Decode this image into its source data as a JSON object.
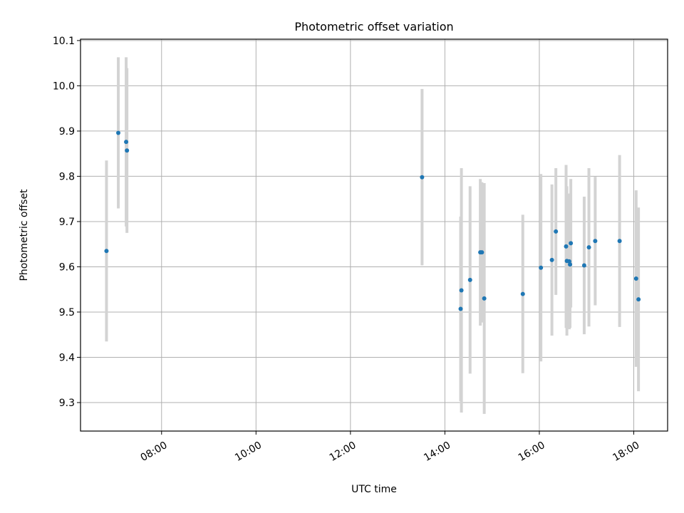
{
  "chart_data": {
    "type": "scatter",
    "title": "Photometric offset variation",
    "xlabel": "UTC time",
    "ylabel": "Photometric offset",
    "x_unit": "hour",
    "xlim": [
      "06:17",
      "18:43"
    ],
    "ylim": [
      9.237,
      10.103
    ],
    "xticks": [
      "08:00",
      "10:00",
      "12:00",
      "14:00",
      "16:00",
      "18:00"
    ],
    "yticks": [
      "9.3",
      "9.4",
      "9.5",
      "9.6",
      "9.7",
      "9.8",
      "9.9",
      "10.0",
      "10.1"
    ],
    "grid": true,
    "colors": {
      "points": "#1f77b4",
      "errorbars": "#d3d3d3",
      "grid": "#b0b0b0"
    },
    "series": [
      {
        "points": [
          {
            "x": "06:50",
            "y": 9.635,
            "err": 0.2
          },
          {
            "x": "07:05",
            "y": 9.896,
            "err": 0.167
          },
          {
            "x": "07:15",
            "y": 9.876,
            "err": 0.187
          },
          {
            "x": "07:16",
            "y": 9.857,
            "err": 0.182
          },
          {
            "x": "13:31",
            "y": 9.798,
            "err": 0.195
          },
          {
            "x": "14:20",
            "y": 9.507,
            "err": 0.204
          },
          {
            "x": "14:21",
            "y": 9.548,
            "err": 0.27
          },
          {
            "x": "14:32",
            "y": 9.571,
            "err": 0.207
          },
          {
            "x": "14:45",
            "y": 9.632,
            "err": 0.162
          },
          {
            "x": "14:47",
            "y": 9.632,
            "err": 0.155
          },
          {
            "x": "14:50",
            "y": 9.53,
            "err": 0.255
          },
          {
            "x": "15:39",
            "y": 9.54,
            "err": 0.175
          },
          {
            "x": "16:02",
            "y": 9.598,
            "err": 0.207
          },
          {
            "x": "16:16",
            "y": 9.615,
            "err": 0.167
          },
          {
            "x": "16:21",
            "y": 9.678,
            "err": 0.14
          },
          {
            "x": "16:34",
            "y": 9.645,
            "err": 0.18
          },
          {
            "x": "16:35",
            "y": 9.613,
            "err": 0.165
          },
          {
            "x": "16:38",
            "y": 9.612,
            "err": 0.15
          },
          {
            "x": "16:39",
            "y": 9.605,
            "err": 0.14
          },
          {
            "x": "16:40",
            "y": 9.652,
            "err": 0.142
          },
          {
            "x": "16:57",
            "y": 9.603,
            "err": 0.152
          },
          {
            "x": "17:03",
            "y": 9.643,
            "err": 0.175
          },
          {
            "x": "17:11",
            "y": 9.657,
            "err": 0.142
          },
          {
            "x": "17:42",
            "y": 9.657,
            "err": 0.19
          },
          {
            "x": "18:03",
            "y": 9.574,
            "err": 0.195
          },
          {
            "x": "18:06",
            "y": 9.528,
            "err": 0.203
          }
        ]
      }
    ]
  }
}
